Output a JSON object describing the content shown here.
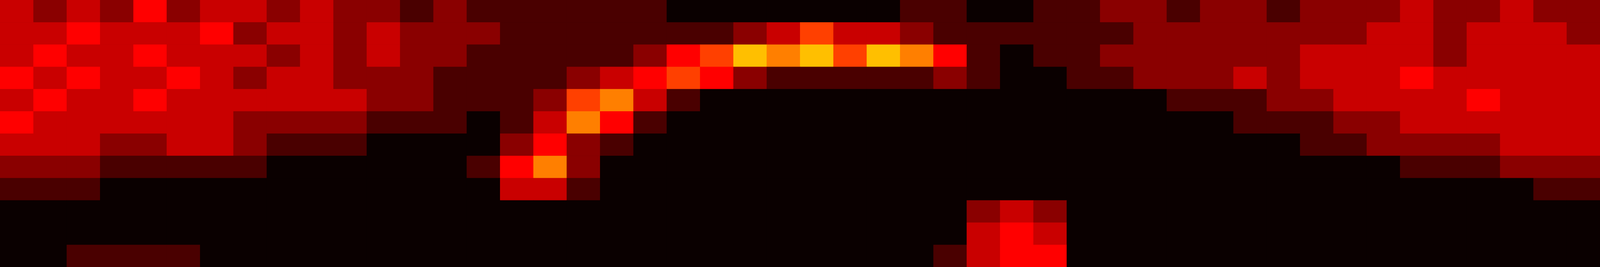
{
  "chart_data": {
    "type": "heatmap",
    "tick_labels": false,
    "zlim": [
      0,
      10
    ],
    "values": [
      [
        3,
        2,
        3,
        2,
        4,
        2,
        3,
        3,
        2,
        3,
        2,
        2,
        1,
        2,
        1,
        1,
        1,
        1,
        1,
        1,
        0,
        0,
        0,
        0,
        0,
        0,
        0,
        1,
        1,
        0,
        0,
        1,
        1,
        2,
        2,
        1,
        2,
        2,
        1,
        2,
        2,
        2,
        3,
        2,
        2,
        3,
        2,
        2
      ],
      [
        3,
        3,
        4,
        3,
        3,
        3,
        4,
        2,
        3,
        3,
        2,
        3,
        2,
        2,
        2,
        1,
        1,
        1,
        1,
        1,
        1,
        1,
        2,
        3,
        5,
        3,
        3,
        2,
        1,
        1,
        1,
        1,
        1,
        1,
        2,
        2,
        2,
        2,
        2,
        2,
        2,
        3,
        3,
        2,
        3,
        3,
        3,
        2
      ],
      [
        3,
        4,
        3,
        3,
        4,
        3,
        3,
        3,
        2,
        3,
        2,
        3,
        2,
        2,
        1,
        1,
        1,
        1,
        1,
        2,
        4,
        5,
        7,
        6,
        7,
        5,
        7,
        6,
        4,
        1,
        0,
        1,
        1,
        2,
        2,
        2,
        2,
        2,
        2,
        3,
        3,
        3,
        3,
        2,
        3,
        3,
        3,
        3
      ],
      [
        4,
        3,
        4,
        3,
        3,
        4,
        3,
        2,
        3,
        3,
        2,
        2,
        2,
        1,
        1,
        1,
        1,
        2,
        3,
        4,
        5,
        4,
        2,
        1,
        1,
        1,
        1,
        1,
        2,
        1,
        0,
        0,
        1,
        1,
        2,
        2,
        2,
        3,
        2,
        3,
        3,
        3,
        4,
        3,
        3,
        3,
        3,
        3
      ],
      [
        3,
        4,
        3,
        3,
        4,
        3,
        3,
        3,
        3,
        3,
        3,
        2,
        2,
        1,
        1,
        1,
        2,
        5,
        6,
        3,
        1,
        0,
        0,
        0,
        0,
        0,
        0,
        0,
        0,
        0,
        0,
        0,
        0,
        0,
        0,
        1,
        1,
        1,
        2,
        2,
        3,
        3,
        3,
        3,
        4,
        3,
        3,
        3
      ],
      [
        4,
        3,
        3,
        3,
        3,
        3,
        3,
        2,
        2,
        2,
        2,
        1,
        1,
        1,
        0,
        1,
        3,
        6,
        4,
        1,
        0,
        0,
        0,
        0,
        0,
        0,
        0,
        0,
        0,
        0,
        0,
        0,
        0,
        0,
        0,
        0,
        0,
        1,
        1,
        1,
        2,
        2,
        3,
        3,
        3,
        3,
        3,
        3
      ],
      [
        3,
        3,
        3,
        2,
        2,
        3,
        3,
        2,
        1,
        1,
        1,
        0,
        0,
        0,
        0,
        2,
        4,
        2,
        1,
        0,
        0,
        0,
        0,
        0,
        0,
        0,
        0,
        0,
        0,
        0,
        0,
        0,
        0,
        0,
        0,
        0,
        0,
        0,
        0,
        1,
        1,
        2,
        2,
        2,
        2,
        3,
        3,
        3
      ],
      [
        2,
        2,
        2,
        1,
        1,
        1,
        1,
        1,
        0,
        0,
        0,
        0,
        0,
        0,
        1,
        4,
        6,
        2,
        0,
        0,
        0,
        0,
        0,
        0,
        0,
        0,
        0,
        0,
        0,
        0,
        0,
        0,
        0,
        0,
        0,
        0,
        0,
        0,
        0,
        0,
        0,
        0,
        1,
        1,
        1,
        2,
        2,
        2
      ],
      [
        1,
        1,
        1,
        0,
        0,
        0,
        0,
        0,
        0,
        0,
        0,
        0,
        0,
        0,
        0,
        3,
        3,
        1,
        0,
        0,
        0,
        0,
        0,
        0,
        0,
        0,
        0,
        0,
        0,
        0,
        0,
        0,
        0,
        0,
        0,
        0,
        0,
        0,
        0,
        0,
        0,
        0,
        0,
        0,
        0,
        0,
        1,
        1
      ],
      [
        0,
        0,
        0,
        0,
        0,
        0,
        0,
        0,
        0,
        0,
        0,
        0,
        0,
        0,
        0,
        0,
        0,
        0,
        0,
        0,
        0,
        0,
        0,
        0,
        0,
        0,
        0,
        0,
        0,
        2,
        3,
        2,
        0,
        0,
        0,
        0,
        0,
        0,
        0,
        0,
        0,
        0,
        0,
        0,
        0,
        0,
        0,
        0
      ],
      [
        0,
        0,
        0,
        0,
        0,
        0,
        0,
        0,
        0,
        0,
        0,
        0,
        0,
        0,
        0,
        0,
        0,
        0,
        0,
        0,
        0,
        0,
        0,
        0,
        0,
        0,
        0,
        0,
        0,
        3,
        4,
        3,
        0,
        0,
        0,
        0,
        0,
        0,
        0,
        0,
        0,
        0,
        0,
        0,
        0,
        0,
        0,
        0
      ],
      [
        0,
        0,
        1,
        1,
        1,
        1,
        0,
        0,
        0,
        0,
        0,
        0,
        0,
        0,
        0,
        0,
        0,
        0,
        0,
        0,
        0,
        0,
        0,
        0,
        0,
        0,
        0,
        0,
        1,
        3,
        4,
        4,
        0,
        0,
        0,
        0,
        0,
        0,
        0,
        0,
        0,
        0,
        0,
        0,
        0,
        0,
        0,
        0
      ]
    ]
  }
}
